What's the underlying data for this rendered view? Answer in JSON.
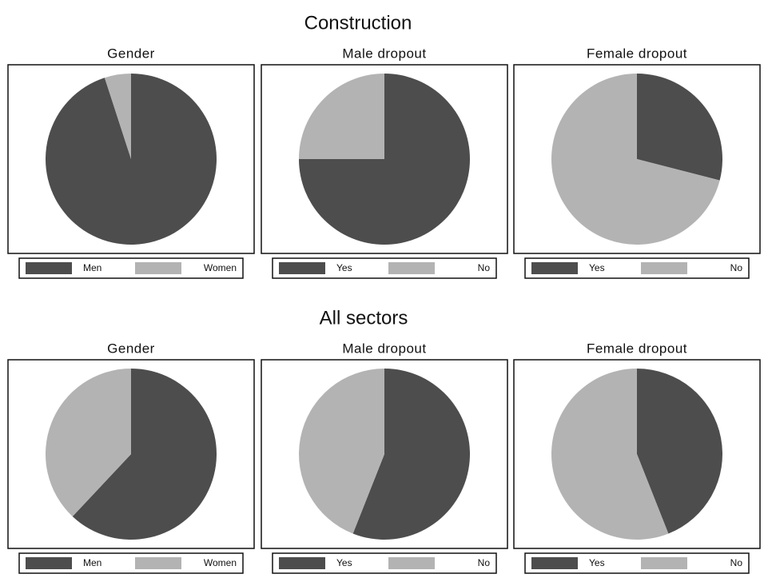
{
  "section_titles": [
    "Construction",
    "All sectors"
  ],
  "chart_data": [
    {
      "type": "pie",
      "title": "Gender",
      "categories": [
        "Men",
        "Women"
      ],
      "values": [
        95,
        5
      ],
      "colors": [
        "#4d4d4d",
        "#b3b3b3"
      ]
    },
    {
      "type": "pie",
      "title": "Male dropout",
      "categories": [
        "Yes",
        "No"
      ],
      "values": [
        75,
        25
      ],
      "colors": [
        "#4d4d4d",
        "#b3b3b3"
      ]
    },
    {
      "type": "pie",
      "title": "Female dropout",
      "categories": [
        "Yes",
        "No"
      ],
      "values": [
        29,
        71
      ],
      "colors": [
        "#4d4d4d",
        "#b3b3b3"
      ]
    },
    {
      "type": "pie",
      "title": "Gender",
      "categories": [
        "Men",
        "Women"
      ],
      "values": [
        62,
        38
      ],
      "colors": [
        "#4d4d4d",
        "#b3b3b3"
      ]
    },
    {
      "type": "pie",
      "title": "Male dropout",
      "categories": [
        "Yes",
        "No"
      ],
      "values": [
        56,
        44
      ],
      "colors": [
        "#4d4d4d",
        "#b3b3b3"
      ]
    },
    {
      "type": "pie",
      "title": "Female dropout",
      "categories": [
        "Yes",
        "No"
      ],
      "values": [
        44,
        56
      ],
      "colors": [
        "#4d4d4d",
        "#b3b3b3"
      ]
    }
  ]
}
